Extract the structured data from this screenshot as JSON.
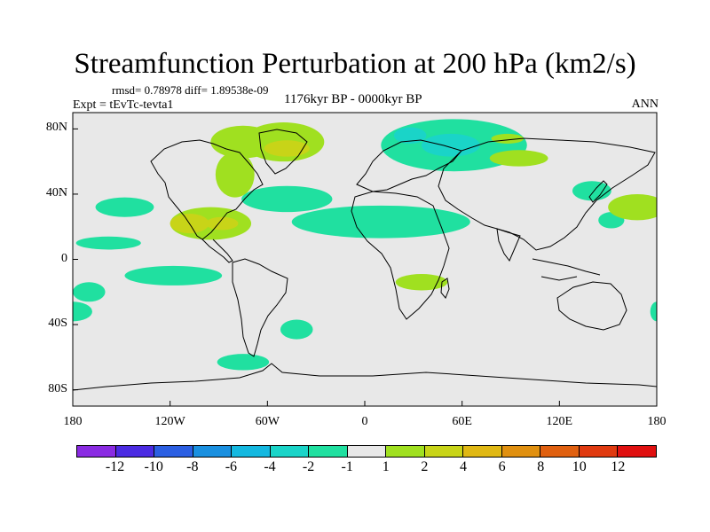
{
  "title": "Streamfunction Perturbation at 200 hPa (km2/s)",
  "stats": "rmsd= 0.78978 diff= 1.89538e-09",
  "experiment": "Expt = tEvTc-tevta1",
  "period": "1176kyr BP - 0000kyr BP",
  "season": "ANN",
  "lat_labels": [
    "80N",
    "40N",
    "0",
    "40S",
    "80S"
  ],
  "lon_labels": [
    "180",
    "120W",
    "60W",
    "0",
    "60E",
    "120E",
    "180"
  ],
  "colorbar": {
    "colors": [
      "#8a2be2",
      "#4b2be2",
      "#2b5fe2",
      "#1a90e0",
      "#14b8e0",
      "#1ad4c8",
      "#20e0a0",
      "#e8e8e8",
      "#a0e020",
      "#c8d418",
      "#e0b814",
      "#e09010",
      "#e06010",
      "#e03a10",
      "#e01010"
    ],
    "labels": [
      "-12",
      "-10",
      "-8",
      "-6",
      "-4",
      "-2",
      "-1",
      "1",
      "2",
      "4",
      "6",
      "8",
      "10",
      "12"
    ]
  },
  "map": {
    "ocean_color": "#e8e8e8",
    "lat_range": [
      -90,
      90
    ],
    "lon_range": [
      -180,
      180
    ],
    "anomalies": [
      {
        "lon": -148,
        "lat": 32,
        "rlon": 18,
        "rlat": 6,
        "level": "-1"
      },
      {
        "lon": -158,
        "lat": 10,
        "rlon": 20,
        "rlat": 4,
        "level": "-1"
      },
      {
        "lon": -118,
        "lat": -10,
        "rlon": 30,
        "rlat": 6,
        "level": "-1"
      },
      {
        "lon": -170,
        "lat": -20,
        "rlon": 10,
        "rlat": 6,
        "level": "-1"
      },
      {
        "lon": -48,
        "lat": 37,
        "rlon": 28,
        "rlat": 8,
        "level": "-1"
      },
      {
        "lon": 10,
        "lat": 23,
        "rlon": 55,
        "rlat": 10,
        "level": "-1"
      },
      {
        "lon": 140,
        "lat": 42,
        "rlon": 12,
        "rlat": 6,
        "level": "-1"
      },
      {
        "lon": 55,
        "lat": 70,
        "rlon": 45,
        "rlat": 16,
        "level": "-1"
      },
      {
        "lon": 53,
        "lat": 70,
        "rlon": 18,
        "rlat": 7,
        "level": "-2"
      },
      {
        "lon": 28,
        "lat": 76,
        "rlon": 10,
        "rlat": 5,
        "level": "-2"
      },
      {
        "lon": -42,
        "lat": -43,
        "rlon": 10,
        "rlat": 6,
        "level": "-1"
      },
      {
        "lon": -75,
        "lat": -63,
        "rlon": 16,
        "rlat": 5,
        "level": "-1"
      },
      {
        "lon": 180,
        "lat": -32,
        "rlon": 4,
        "rlat": 6,
        "level": "-1"
      },
      {
        "lon": -180,
        "lat": -32,
        "rlon": 12,
        "rlat": 6,
        "level": "-1"
      },
      {
        "lon": 152,
        "lat": 24,
        "rlon": 8,
        "rlat": 5,
        "level": "-1"
      },
      {
        "lon": -75,
        "lat": 72,
        "rlon": 20,
        "rlat": 10,
        "level": "1"
      },
      {
        "lon": -50,
        "lat": 72,
        "rlon": 25,
        "rlat": 12,
        "level": "1"
      },
      {
        "lon": -80,
        "lat": 52,
        "rlon": 12,
        "rlat": 14,
        "level": "1"
      },
      {
        "lon": -95,
        "lat": 22,
        "rlon": 25,
        "rlat": 10,
        "level": "1"
      },
      {
        "lon": -108,
        "lat": 22,
        "rlon": 12,
        "rlat": 6,
        "level": "2"
      },
      {
        "lon": -88,
        "lat": 22,
        "rlon": 10,
        "rlat": 4,
        "level": "2"
      },
      {
        "lon": -48,
        "lat": 68,
        "rlon": 14,
        "rlat": 5,
        "level": "2"
      },
      {
        "lon": 95,
        "lat": 62,
        "rlon": 18,
        "rlat": 5,
        "level": "1"
      },
      {
        "lon": 35,
        "lat": -14,
        "rlon": 16,
        "rlat": 5,
        "level": "1"
      },
      {
        "lon": 168,
        "lat": 32,
        "rlon": 18,
        "rlat": 8,
        "level": "1"
      },
      {
        "lon": 88,
        "lat": 74,
        "rlon": 10,
        "rlat": 3,
        "level": "1"
      }
    ]
  }
}
